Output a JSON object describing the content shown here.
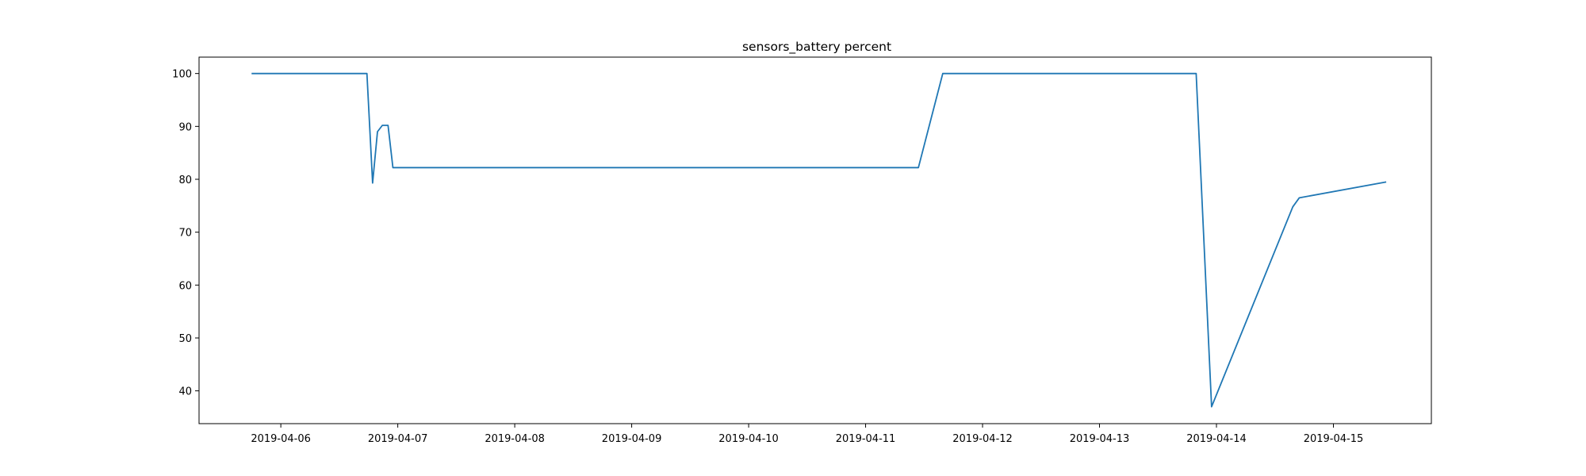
{
  "chart_data": {
    "type": "line",
    "title": "sensors_battery percent",
    "xlabel": "",
    "ylabel": "",
    "x_axis_type": "date",
    "xlim": [
      "2019-04-05 07:13",
      "2019-04-15 20:06"
    ],
    "ylim": [
      33.8,
      103.1
    ],
    "x_ticks": [
      "2019-04-06",
      "2019-04-07",
      "2019-04-08",
      "2019-04-09",
      "2019-04-10",
      "2019-04-11",
      "2019-04-12",
      "2019-04-13",
      "2019-04-14",
      "2019-04-15"
    ],
    "y_ticks": [
      40,
      50,
      60,
      70,
      80,
      90,
      100
    ],
    "grid": false,
    "legend": "none",
    "series": [
      {
        "color": "#1f77b4",
        "points": [
          {
            "x": "2019-04-05 18:00",
            "y": 100
          },
          {
            "x": "2019-04-06 17:40",
            "y": 100
          },
          {
            "x": "2019-04-06 18:50",
            "y": 79.3
          },
          {
            "x": "2019-04-06 19:50",
            "y": 89
          },
          {
            "x": "2019-04-06 20:50",
            "y": 90.2
          },
          {
            "x": "2019-04-06 22:00",
            "y": 90.2
          },
          {
            "x": "2019-04-06 23:00",
            "y": 82.2
          },
          {
            "x": "2019-04-11 10:50",
            "y": 82.2
          },
          {
            "x": "2019-04-11 15:50",
            "y": 100
          },
          {
            "x": "2019-04-13 19:50",
            "y": 100
          },
          {
            "x": "2019-04-13 23:00",
            "y": 37
          },
          {
            "x": "2019-04-14 15:40",
            "y": 74.8
          },
          {
            "x": "2019-04-14 17:00",
            "y": 76.5
          },
          {
            "x": "2019-04-15 10:50",
            "y": 79.5
          }
        ]
      }
    ]
  }
}
